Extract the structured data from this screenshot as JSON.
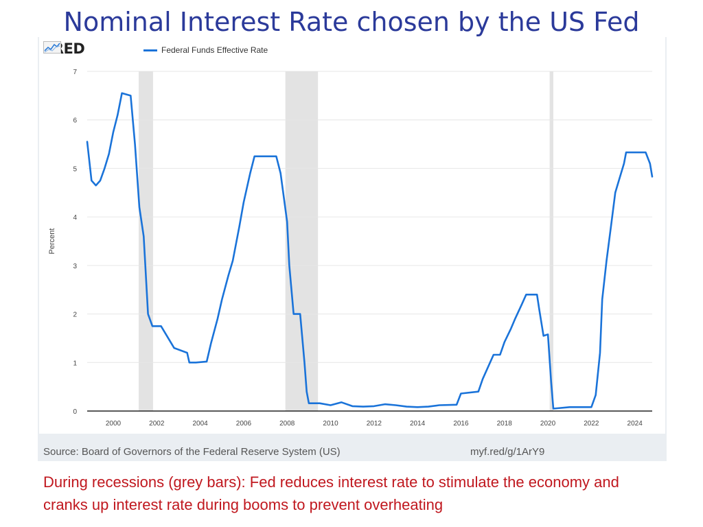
{
  "slide": {
    "title": "Nominal Interest Rate chosen by the US Fed",
    "caption": "During recessions (grey bars): Fed reduces interest rate to stimulate the economy  and cranks up interest rate during booms to prevent overheating"
  },
  "fred": {
    "logo_text": "FRED",
    "logo_icon": "fred-graph-icon",
    "source": "Source: Board of Governors of the Federal Reserve System (US)",
    "link": "myf.red/g/1ArY9"
  },
  "chart_data": {
    "type": "line",
    "title": "",
    "xlabel": "",
    "ylabel": "Percent",
    "xlim": [
      1998.8,
      2024.8
    ],
    "ylim": [
      0,
      7
    ],
    "xticks": [
      2000,
      2002,
      2004,
      2006,
      2008,
      2010,
      2012,
      2014,
      2016,
      2018,
      2020,
      2022,
      2024
    ],
    "yticks": [
      0,
      1,
      2,
      3,
      4,
      5,
      6,
      7
    ],
    "grid": true,
    "legend": "top-left",
    "line_color": "#1a73d9",
    "recession_color": "#e3e3e3",
    "recessions": [
      [
        2001.17,
        2001.83
      ],
      [
        2007.92,
        2009.42
      ],
      [
        2020.08,
        2020.25
      ]
    ],
    "series": [
      {
        "name": "Federal Funds Effective Rate",
        "points": [
          [
            1998.8,
            5.55
          ],
          [
            1999.0,
            4.75
          ],
          [
            1999.2,
            4.65
          ],
          [
            1999.4,
            4.75
          ],
          [
            1999.6,
            5.0
          ],
          [
            1999.8,
            5.3
          ],
          [
            2000.0,
            5.75
          ],
          [
            2000.2,
            6.1
          ],
          [
            2000.4,
            6.55
          ],
          [
            2000.8,
            6.5
          ],
          [
            2001.0,
            5.5
          ],
          [
            2001.2,
            4.2
          ],
          [
            2001.4,
            3.6
          ],
          [
            2001.6,
            2.0
          ],
          [
            2001.8,
            1.75
          ],
          [
            2002.2,
            1.75
          ],
          [
            2002.8,
            1.3
          ],
          [
            2003.4,
            1.2
          ],
          [
            2003.5,
            1.0
          ],
          [
            2003.8,
            1.0
          ],
          [
            2004.3,
            1.02
          ],
          [
            2004.5,
            1.4
          ],
          [
            2004.8,
            1.9
          ],
          [
            2005.0,
            2.3
          ],
          [
            2005.3,
            2.8
          ],
          [
            2005.5,
            3.1
          ],
          [
            2005.8,
            3.8
          ],
          [
            2006.0,
            4.3
          ],
          [
            2006.3,
            4.9
          ],
          [
            2006.5,
            5.25
          ],
          [
            2007.0,
            5.25
          ],
          [
            2007.5,
            5.25
          ],
          [
            2007.7,
            4.9
          ],
          [
            2008.0,
            3.9
          ],
          [
            2008.1,
            3.0
          ],
          [
            2008.3,
            2.0
          ],
          [
            2008.6,
            2.0
          ],
          [
            2008.8,
            1.0
          ],
          [
            2008.9,
            0.4
          ],
          [
            2009.0,
            0.16
          ],
          [
            2009.5,
            0.16
          ],
          [
            2010.0,
            0.12
          ],
          [
            2010.5,
            0.18
          ],
          [
            2011.0,
            0.1
          ],
          [
            2011.5,
            0.09
          ],
          [
            2012.0,
            0.1
          ],
          [
            2012.5,
            0.14
          ],
          [
            2013.0,
            0.12
          ],
          [
            2013.5,
            0.09
          ],
          [
            2014.0,
            0.08
          ],
          [
            2014.5,
            0.09
          ],
          [
            2015.0,
            0.12
          ],
          [
            2015.8,
            0.13
          ],
          [
            2016.0,
            0.36
          ],
          [
            2016.8,
            0.4
          ],
          [
            2017.0,
            0.66
          ],
          [
            2017.5,
            1.16
          ],
          [
            2017.8,
            1.16
          ],
          [
            2018.0,
            1.42
          ],
          [
            2018.3,
            1.7
          ],
          [
            2018.5,
            1.91
          ],
          [
            2018.8,
            2.2
          ],
          [
            2019.0,
            2.4
          ],
          [
            2019.5,
            2.4
          ],
          [
            2019.6,
            2.1
          ],
          [
            2019.8,
            1.55
          ],
          [
            2020.0,
            1.58
          ],
          [
            2020.15,
            0.6
          ],
          [
            2020.25,
            0.05
          ],
          [
            2021.0,
            0.08
          ],
          [
            2021.5,
            0.08
          ],
          [
            2022.0,
            0.08
          ],
          [
            2022.2,
            0.33
          ],
          [
            2022.4,
            1.2
          ],
          [
            2022.5,
            2.3
          ],
          [
            2022.7,
            3.1
          ],
          [
            2022.9,
            3.8
          ],
          [
            2023.1,
            4.5
          ],
          [
            2023.3,
            4.8
          ],
          [
            2023.5,
            5.1
          ],
          [
            2023.6,
            5.33
          ],
          [
            2024.5,
            5.33
          ],
          [
            2024.7,
            5.1
          ],
          [
            2024.8,
            4.83
          ]
        ]
      }
    ]
  }
}
